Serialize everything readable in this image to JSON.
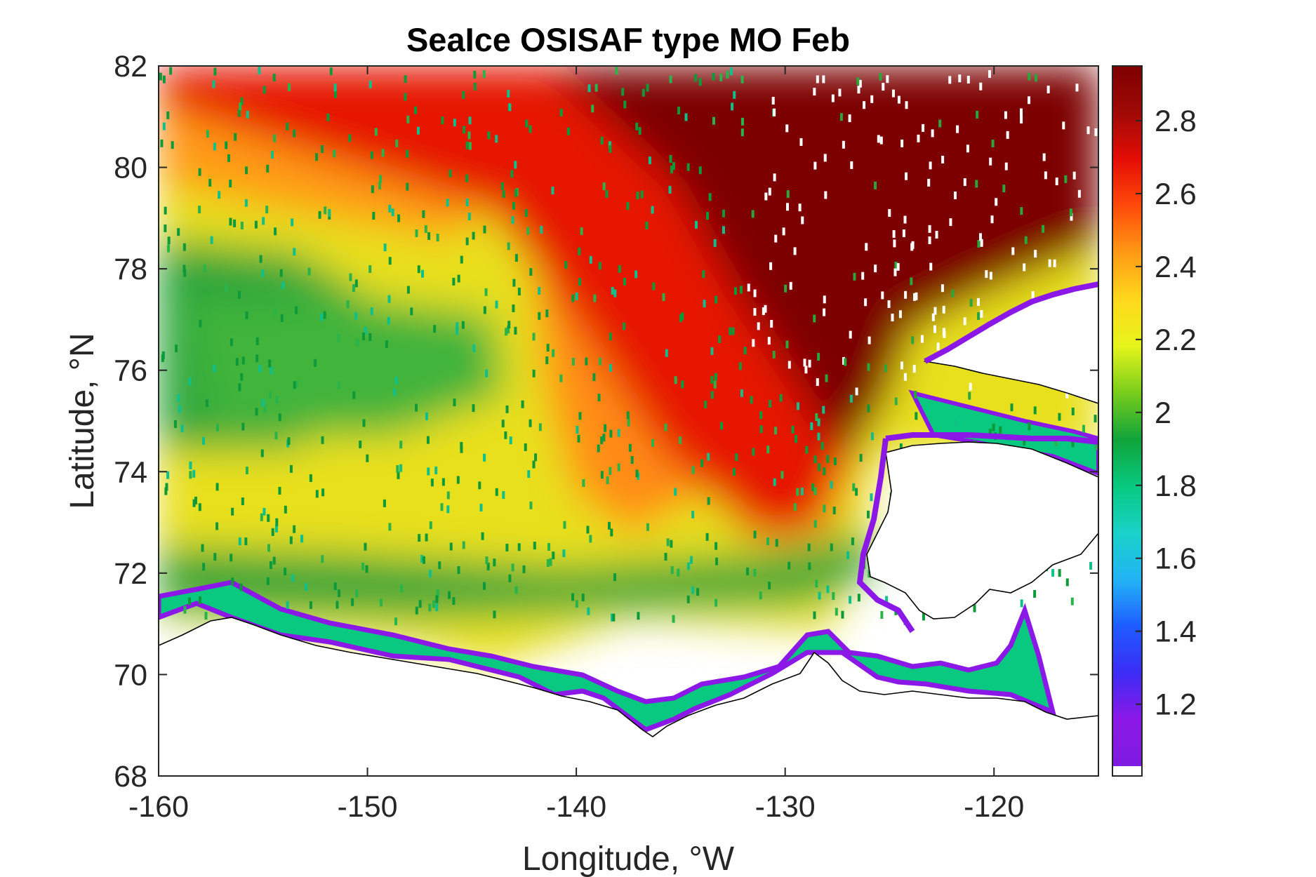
{
  "title": "SeaIce OSISAF type MO Feb",
  "x_axis": {
    "label": "Longitude, °W",
    "range": [
      -160,
      -115
    ],
    "ticks": [
      -160,
      -150,
      -140,
      -130,
      -120
    ]
  },
  "y_axis": {
    "label": "Latitude, °N",
    "range": [
      68,
      82
    ],
    "ticks": [
      68,
      70,
      72,
      74,
      76,
      78,
      80,
      82
    ]
  },
  "colorbar": {
    "range": [
      1.03,
      2.95
    ],
    "ticks": [
      1.2,
      1.4,
      1.6,
      1.8,
      2,
      2.2,
      2.4,
      2.6,
      2.8
    ],
    "colors": [
      "#7e1be0",
      "#8b18e6",
      "#3c2cf5",
      "#1e5cff",
      "#22b4f5",
      "#19d2c8",
      "#08c97f",
      "#10a43a",
      "#78cd1b",
      "#e6f51c",
      "#ffd81c",
      "#ff9a14",
      "#ff4a0a",
      "#e40d05",
      "#9f0a06",
      "#7d0000"
    ]
  }
}
